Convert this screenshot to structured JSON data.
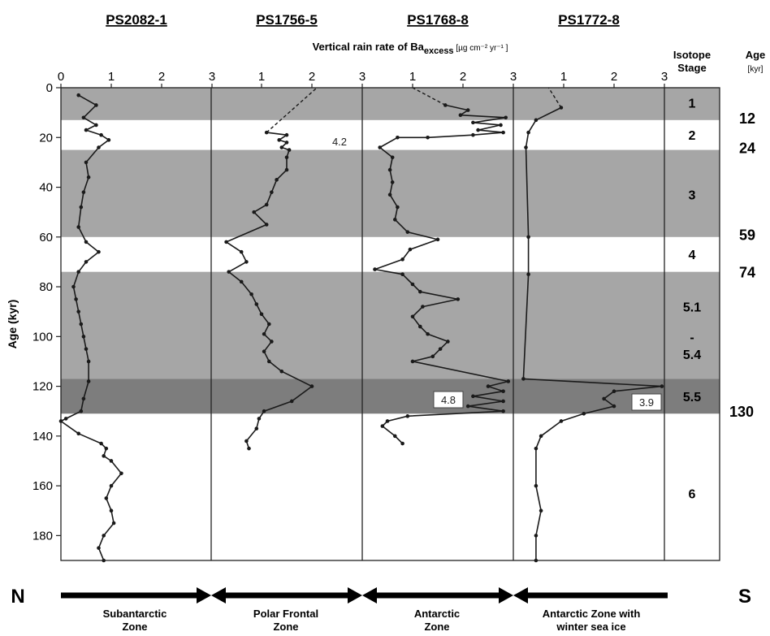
{
  "chart_data": {
    "type": "line",
    "xlabel_main": "Vertical rain rate of Ba",
    "xlabel_sub": "excess",
    "xlabel_units": "[µg cm⁻² yr⁻¹ ]",
    "ylabel": "Age (kyr)",
    "ylim": [
      0,
      190
    ],
    "xlim": [
      0,
      3
    ],
    "y_ticks": [
      "0",
      "20",
      "40",
      "60",
      "80",
      "100",
      "120",
      "140",
      "160",
      "180"
    ],
    "x_ticks_first": [
      "0",
      "1",
      "2",
      "3"
    ],
    "x_ticks_other": [
      "1",
      "2",
      "3"
    ],
    "cores": [
      {
        "name": "PS2082-1",
        "points": [
          [
            0.35,
            3
          ],
          [
            0.7,
            7
          ],
          [
            0.45,
            12
          ],
          [
            0.7,
            15
          ],
          [
            0.5,
            17
          ],
          [
            0.8,
            19
          ],
          [
            0.95,
            21
          ],
          [
            0.75,
            24
          ],
          [
            0.5,
            30
          ],
          [
            0.55,
            36
          ],
          [
            0.45,
            42
          ],
          [
            0.4,
            48
          ],
          [
            0.35,
            56
          ],
          [
            0.5,
            62
          ],
          [
            0.75,
            66
          ],
          [
            0.5,
            70
          ],
          [
            0.35,
            74
          ],
          [
            0.25,
            80
          ],
          [
            0.3,
            85
          ],
          [
            0.35,
            90
          ],
          [
            0.4,
            95
          ],
          [
            0.45,
            100
          ],
          [
            0.5,
            105
          ],
          [
            0.55,
            110
          ],
          [
            0.55,
            118
          ],
          [
            0.45,
            125
          ],
          [
            0.4,
            130
          ],
          [
            0.1,
            133
          ],
          [
            0.0,
            134
          ],
          [
            0.35,
            139
          ],
          [
            0.8,
            143
          ],
          [
            0.9,
            145
          ],
          [
            0.85,
            148
          ],
          [
            1.0,
            150
          ],
          [
            1.2,
            155
          ],
          [
            1.0,
            160
          ],
          [
            0.9,
            165
          ],
          [
            1.0,
            170
          ],
          [
            1.05,
            175
          ],
          [
            0.85,
            180
          ],
          [
            0.75,
            185
          ],
          [
            0.85,
            190
          ]
        ]
      },
      {
        "name": "PS1756-5",
        "points": [
          [
            1.1,
            18
          ],
          [
            1.5,
            19
          ],
          [
            1.35,
            21
          ],
          [
            1.5,
            22
          ],
          [
            1.4,
            24
          ],
          [
            1.55,
            25
          ],
          [
            1.5,
            28
          ],
          [
            1.5,
            33
          ],
          [
            1.3,
            37
          ],
          [
            1.2,
            42
          ],
          [
            1.1,
            47
          ],
          [
            0.85,
            50
          ],
          [
            1.1,
            55
          ],
          [
            0.3,
            62
          ],
          [
            0.6,
            66
          ],
          [
            0.7,
            70
          ],
          [
            0.35,
            74
          ],
          [
            0.6,
            78
          ],
          [
            0.8,
            83
          ],
          [
            0.9,
            87
          ],
          [
            1.0,
            91
          ],
          [
            1.15,
            95
          ],
          [
            1.05,
            99
          ],
          [
            1.2,
            102
          ],
          [
            1.05,
            106
          ],
          [
            1.15,
            110
          ],
          [
            1.4,
            114
          ],
          [
            2.0,
            120
          ],
          [
            1.6,
            126
          ],
          [
            1.05,
            130
          ],
          [
            0.95,
            133
          ],
          [
            0.9,
            137
          ],
          [
            0.7,
            142
          ],
          [
            0.75,
            145
          ]
        ]
      },
      {
        "name": "PS1768-8",
        "points": [
          [
            1.65,
            7
          ],
          [
            2.1,
            9
          ],
          [
            1.95,
            11
          ],
          [
            2.85,
            12
          ],
          [
            2.2,
            14
          ],
          [
            2.75,
            15
          ],
          [
            2.3,
            17
          ],
          [
            2.8,
            18
          ],
          [
            2.2,
            19
          ],
          [
            1.3,
            20
          ],
          [
            0.7,
            20
          ],
          [
            0.35,
            24
          ],
          [
            0.6,
            28
          ],
          [
            0.55,
            33
          ],
          [
            0.6,
            38
          ],
          [
            0.55,
            43
          ],
          [
            0.7,
            48
          ],
          [
            0.65,
            53
          ],
          [
            0.9,
            58
          ],
          [
            1.5,
            61
          ],
          [
            0.95,
            65
          ],
          [
            0.8,
            69
          ],
          [
            0.25,
            73
          ],
          [
            0.8,
            75
          ],
          [
            1.0,
            79
          ],
          [
            1.15,
            82
          ],
          [
            1.9,
            85
          ],
          [
            1.2,
            88
          ],
          [
            1.0,
            92
          ],
          [
            1.15,
            96
          ],
          [
            1.3,
            99
          ],
          [
            1.7,
            102
          ],
          [
            1.55,
            105
          ],
          [
            1.4,
            108
          ],
          [
            1.0,
            110
          ],
          [
            2.9,
            118
          ],
          [
            2.5,
            120
          ],
          [
            2.8,
            122
          ],
          [
            2.2,
            124
          ],
          [
            2.8,
            126
          ],
          [
            2.1,
            128
          ],
          [
            2.8,
            130
          ],
          [
            0.9,
            132
          ],
          [
            0.5,
            134
          ],
          [
            0.4,
            136
          ],
          [
            0.65,
            140
          ],
          [
            0.8,
            143
          ]
        ]
      },
      {
        "name": "PS1772-8",
        "points": [
          [
            0.95,
            8
          ],
          [
            0.45,
            13
          ],
          [
            0.3,
            18
          ],
          [
            0.25,
            24
          ],
          [
            0.3,
            60
          ],
          [
            0.3,
            75
          ],
          [
            0.2,
            117
          ],
          [
            2.95,
            120
          ],
          [
            2.0,
            122
          ],
          [
            1.8,
            125
          ],
          [
            2.0,
            128
          ],
          [
            1.4,
            131
          ],
          [
            0.95,
            134
          ],
          [
            0.55,
            140
          ],
          [
            0.45,
            145
          ],
          [
            0.45,
            160
          ],
          [
            0.55,
            170
          ],
          [
            0.45,
            180
          ],
          [
            0.45,
            190
          ]
        ]
      }
    ],
    "dashed_extensions": [
      {
        "core": "PS1756-5",
        "points": [
          [
            1.1,
            18
          ],
          [
            2.1,
            0
          ]
        ]
      },
      {
        "core": "PS1768-8",
        "points": [
          [
            1.65,
            7
          ],
          [
            1.0,
            0
          ]
        ]
      },
      {
        "core": "PS1772-8",
        "points": [
          [
            0.95,
            8
          ],
          [
            0.7,
            0
          ]
        ]
      }
    ],
    "annotations": [
      {
        "core": "PS1768-8",
        "text": "4.2",
        "boxed": false
      },
      {
        "core": "PS1768-8",
        "text": "4.8",
        "boxed": true
      },
      {
        "core": "PS1772-8",
        "text": "3.9",
        "boxed": true
      }
    ],
    "bands": [
      {
        "from": 0,
        "to": 13,
        "shade": "light"
      },
      {
        "from": 25,
        "to": 60,
        "shade": "light"
      },
      {
        "from": 74,
        "to": 117,
        "shade": "light"
      },
      {
        "from": 117,
        "to": 131,
        "shade": "dark"
      }
    ],
    "stage_header": [
      "Isotope",
      "Stage"
    ],
    "age_header": [
      "Age",
      "[kyr]"
    ],
    "stages": [
      {
        "label": "1",
        "at": 6
      },
      {
        "label": "2",
        "at": 19
      },
      {
        "label": "3",
        "at": 43
      },
      {
        "label": "4",
        "at": 67
      },
      {
        "label": "5.1",
        "at": 88
      },
      {
        "label": "-",
        "at": 100
      },
      {
        "label": "5.4",
        "at": 107
      },
      {
        "label": "5.5",
        "at": 124
      },
      {
        "label": "6",
        "at": 163
      }
    ],
    "boundary_ages": [
      {
        "label": "12",
        "at": 12
      },
      {
        "label": "24",
        "at": 24
      },
      {
        "label": "59",
        "at": 59
      },
      {
        "label": "74",
        "at": 74
      },
      {
        "label": "130",
        "at": 130
      }
    ],
    "direction": {
      "left": "N",
      "right": "S"
    },
    "zones": [
      [
        "Subantarctic",
        "Zone"
      ],
      [
        "Polar Frontal",
        "Zone"
      ],
      [
        "Antarctic",
        "Zone"
      ],
      [
        "Antarctic Zone with",
        "winter sea ice"
      ]
    ],
    "colors": {
      "light_band": "#a6a6a6",
      "dark_band": "#7d7d7d",
      "line": "#1a1a1a"
    }
  }
}
